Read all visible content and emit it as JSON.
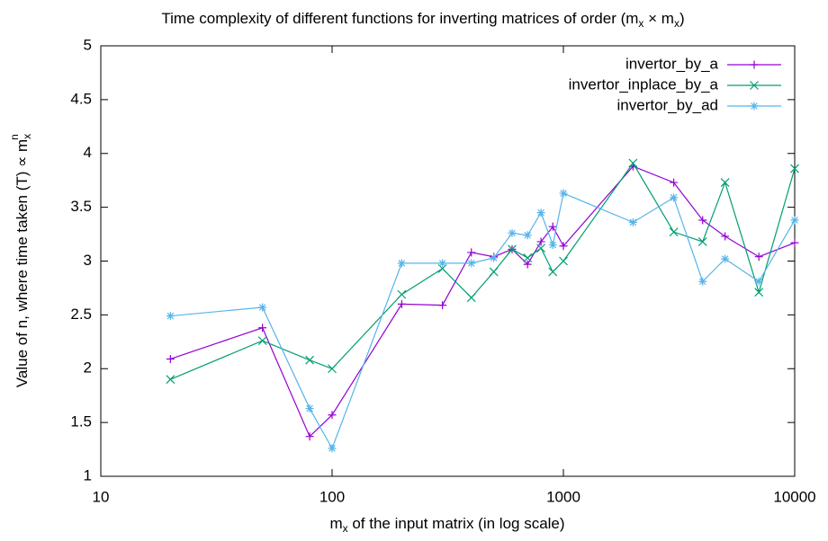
{
  "chart_data": {
    "type": "line",
    "title": [
      "Time complexity of different functions for inverting matrices of order (m",
      "x",
      " × m",
      "x",
      ")"
    ],
    "xlabel": [
      "m",
      "x",
      " of the input matrix (in log scale)"
    ],
    "ylabel": [
      "Value of n, where time taken (T) ∝ m",
      "x",
      "n"
    ],
    "x": [
      20,
      50,
      80,
      100,
      200,
      300,
      400,
      500,
      600,
      700,
      800,
      900,
      1000,
      2000,
      3000,
      4000,
      5000,
      7000,
      10000
    ],
    "xscale": "log",
    "xlim": [
      10,
      10000
    ],
    "xticks": [
      10,
      100,
      1000,
      10000
    ],
    "ylim": [
      1,
      5
    ],
    "yticks": [
      1,
      1.5,
      2,
      2.5,
      3,
      3.5,
      4,
      4.5,
      5
    ],
    "legend": "top-right",
    "series": [
      {
        "name": "invertor_by_a",
        "color": "#9400d3",
        "marker": "plus",
        "values": [
          2.09,
          2.38,
          1.37,
          1.57,
          2.6,
          2.59,
          3.08,
          3.04,
          3.11,
          2.97,
          3.18,
          3.32,
          3.14,
          3.88,
          3.73,
          3.38,
          3.23,
          3.04,
          3.17
        ]
      },
      {
        "name": "invertor_inplace_by_a",
        "color": "#009e73",
        "marker": "cross",
        "values": [
          1.9,
          2.26,
          2.08,
          2.0,
          2.69,
          2.93,
          2.66,
          2.9,
          3.11,
          3.03,
          3.12,
          2.9,
          3.0,
          3.91,
          3.27,
          3.18,
          3.73,
          2.71,
          3.86
        ]
      },
      {
        "name": "invertor_by_ad",
        "color": "#56b4e9",
        "marker": "star",
        "values": [
          2.49,
          2.57,
          1.63,
          1.26,
          2.98,
          2.98,
          2.98,
          3.03,
          3.26,
          3.24,
          3.45,
          3.15,
          3.63,
          3.36,
          3.59,
          2.81,
          3.02,
          2.81,
          3.38
        ]
      }
    ]
  }
}
